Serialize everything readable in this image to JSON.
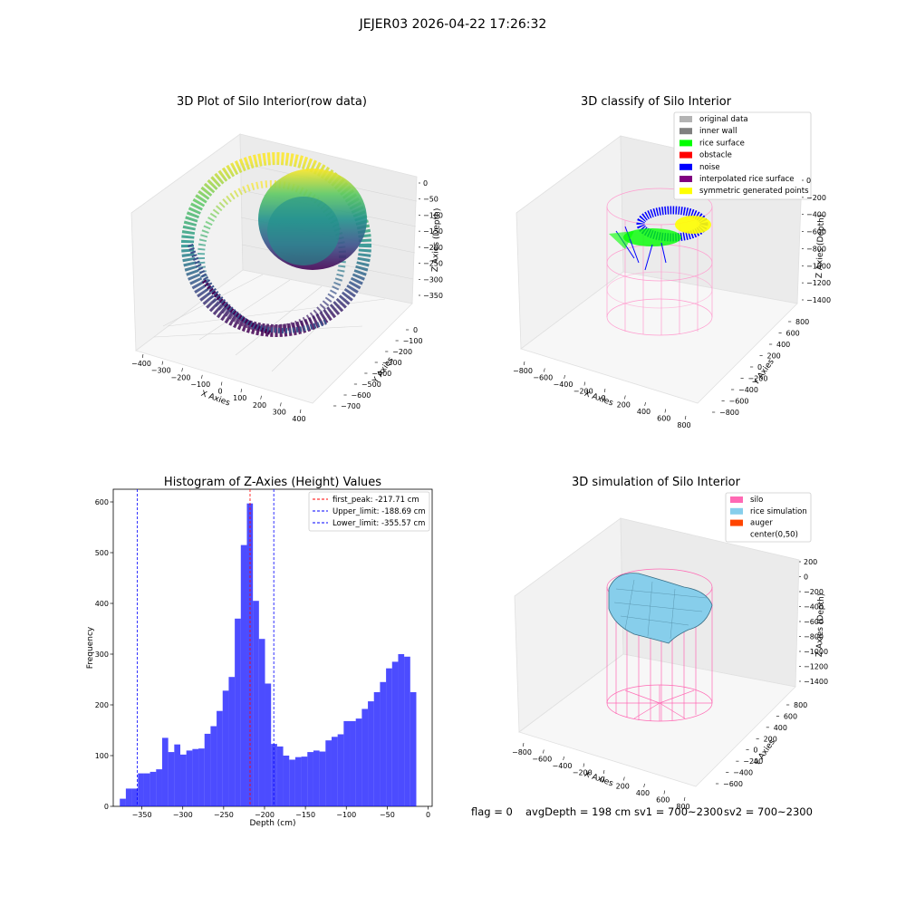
{
  "figure": {
    "suptitle": "JEJER03 2026-04-22 17:26:32",
    "status": {
      "flag": "flag = 0",
      "avg_depth": "avgDepth = 198 cm",
      "sv1": "sv1 = 700~2300",
      "sv2": "sv2 = 700~2300"
    }
  },
  "chart_data": [
    {
      "type": "scatter",
      "title": "3D Plot of Silo Interior(row data)",
      "xlabel": "X Axies",
      "ylabel": "Y Axies",
      "zlabel": "Z Axies (Depth)",
      "x_ticks": [
        "−400",
        "−300",
        "−200",
        "−100",
        "0",
        "100",
        "200",
        "300",
        "400"
      ],
      "y_ticks": [
        "0",
        "−100",
        "−200",
        "−300",
        "−400",
        "−500",
        "−600",
        "−700"
      ],
      "z_ticks": [
        "0",
        "−50",
        "−100",
        "−150",
        "−200",
        "−250",
        "−300",
        "−350"
      ],
      "xlim": [
        -420,
        420
      ],
      "ylim": [
        -720,
        30
      ],
      "zlim": [
        -380,
        10
      ],
      "colormap": [
        "#440154",
        "#3b528b",
        "#21918c",
        "#5ec962",
        "#fde725"
      ]
    },
    {
      "type": "scatter",
      "title": "3D classify of Silo Interior",
      "xlabel": "X Axies",
      "ylabel": "Y Axies",
      "zlabel": "Z Axies (Depth)",
      "x_ticks": [
        "−800",
        "−600",
        "−400",
        "−200",
        "0",
        "200",
        "400",
        "600",
        "800"
      ],
      "y_ticks": [
        "800",
        "600",
        "400",
        "200",
        "0",
        "−200",
        "−400",
        "−600",
        "−800"
      ],
      "z_ticks": [
        "0",
        "−200",
        "−400",
        "−600",
        "−800",
        "−1000",
        "−1200",
        "−1400"
      ],
      "legend": [
        {
          "label": "original data",
          "color": "#b3b3b3"
        },
        {
          "label": "inner wall",
          "color": "#808080"
        },
        {
          "label": "rice surface",
          "color": "#00ff00"
        },
        {
          "label": "obstacle",
          "color": "#ff0000"
        },
        {
          "label": "noise",
          "color": "#0000ff"
        },
        {
          "label": "interpolated rice surface",
          "color": "#800080"
        },
        {
          "label": "symmetric generated points",
          "color": "#ffff00"
        }
      ],
      "legend_position": "top-right"
    },
    {
      "type": "bar",
      "title": "Histogram of Z-Axies (Height) Values",
      "xlabel": "Depth (cm)",
      "ylabel": "Frequency",
      "xlim": [
        -385,
        5
      ],
      "ylim": [
        0,
        625
      ],
      "x_ticks": [
        -350,
        -300,
        -250,
        -200,
        -150,
        -100,
        -50,
        0
      ],
      "y_ticks": [
        0,
        100,
        200,
        300,
        400,
        500,
        600
      ],
      "bin_start": -377,
      "bin_width": 7.4,
      "values": [
        15,
        35,
        35,
        65,
        65,
        68,
        73,
        135,
        107,
        122,
        102,
        110,
        113,
        114,
        143,
        158,
        188,
        228,
        255,
        370,
        515,
        597,
        405,
        330,
        242,
        123,
        118,
        100,
        92,
        97,
        98,
        107,
        110,
        108,
        130,
        137,
        142,
        168,
        168,
        173,
        192,
        207,
        225,
        245,
        272,
        285,
        300,
        295,
        225
      ],
      "bar_color": "#0000ff",
      "vlines": [
        {
          "label": "first_peak: -217.71 cm",
          "x": -217.71,
          "color": "#ff0000"
        },
        {
          "label": "Upper_limit: -188.69 cm",
          "x": -188.69,
          "color": "#0000ff"
        },
        {
          "label": "Lower_limit: -355.57 cm",
          "x": -355.57,
          "color": "#0000ff"
        }
      ],
      "legend_position": "top-right"
    },
    {
      "type": "area",
      "title": "3D simulation of Silo Interior",
      "xlabel": "X Axies",
      "ylabel": "Y Axies",
      "zlabel": "Z Axies (Depth)",
      "x_ticks": [
        "−800",
        "−600",
        "−400",
        "−200",
        "0",
        "200",
        "400",
        "600",
        "800"
      ],
      "y_ticks": [
        "800",
        "600",
        "400",
        "200",
        "0",
        "−200",
        "−400",
        "−600"
      ],
      "z_ticks": [
        "200",
        "0",
        "−200",
        "−400",
        "−600",
        "−800",
        "−1000",
        "−1200",
        "−1400"
      ],
      "legend": [
        {
          "label": "silo",
          "color": "#ff69b4"
        },
        {
          "label": "rice simulation",
          "color": "#87ceeb"
        },
        {
          "label": "auger",
          "color": "#ff4500"
        },
        {
          "label": "center(0,50)",
          "color": ""
        }
      ],
      "legend_position": "top-right"
    }
  ]
}
